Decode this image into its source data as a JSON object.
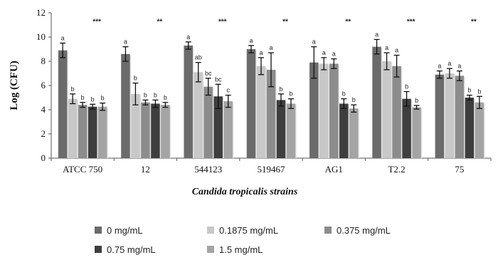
{
  "chart_data": {
    "type": "bar",
    "ylabel": "Log (CFU)",
    "xlabel": "Candida tropicalis strains",
    "ylim": [
      0,
      12
    ],
    "yticks": [
      0,
      2,
      4,
      6,
      8,
      10,
      12
    ],
    "categories": [
      "ATCC 750",
      "12",
      "544123",
      "519467",
      "AG1",
      "T2.2",
      "75"
    ],
    "series": [
      {
        "name": "0 mg/mL",
        "color": "#6b6b6b",
        "values": [
          8.9,
          8.6,
          9.3,
          9.0,
          7.9,
          9.2,
          6.9
        ],
        "errors": [
          0.6,
          0.6,
          0.3,
          0.3,
          1.3,
          0.6,
          0.3
        ],
        "labels": [
          "a",
          "a",
          "a",
          "a",
          "a",
          "a",
          "a"
        ]
      },
      {
        "name": "0.1875 mg/mL",
        "color": "#c8c8c8",
        "values": [
          4.9,
          5.3,
          7.1,
          7.6,
          7.8,
          8.0,
          7.0
        ],
        "errors": [
          0.4,
          0.9,
          0.8,
          0.7,
          0.5,
          0.7,
          0.4
        ],
        "labels": [
          "b",
          "b",
          "ab",
          "a",
          "a",
          "a",
          "a"
        ]
      },
      {
        "name": "0.375 mg/mL",
        "color": "#8c8c8c",
        "values": [
          4.4,
          4.6,
          5.9,
          7.3,
          7.8,
          7.6,
          6.8
        ],
        "errors": [
          0.2,
          0.2,
          0.7,
          1.4,
          0.4,
          0.9,
          0.4
        ],
        "labels": [
          "b",
          "b",
          "bc",
          "a",
          "a",
          "a",
          "a"
        ]
      },
      {
        "name": "0.75 mg/mL",
        "color": "#3e3e3e",
        "values": [
          4.25,
          4.5,
          5.1,
          4.8,
          4.5,
          4.9,
          5.0
        ],
        "errors": [
          0.2,
          0.3,
          1.0,
          0.5,
          0.4,
          0.6,
          0.2
        ],
        "labels": [
          "b",
          "b",
          "bc",
          "b",
          "b",
          "b",
          "b"
        ]
      },
      {
        "name": "1.5 mg/mL",
        "color": "#a4a4a4",
        "values": [
          4.25,
          4.4,
          4.7,
          4.5,
          4.1,
          4.2,
          4.6
        ],
        "errors": [
          0.3,
          0.2,
          0.5,
          0.4,
          0.3,
          0.15,
          0.5
        ],
        "labels": [
          "b",
          "b",
          "c",
          "b",
          "b",
          "b",
          "b"
        ]
      }
    ],
    "significance": [
      "***",
      "**",
      "***",
      "**",
      "**",
      "***",
      "**"
    ],
    "legend_position": "bottom",
    "grid": false
  }
}
